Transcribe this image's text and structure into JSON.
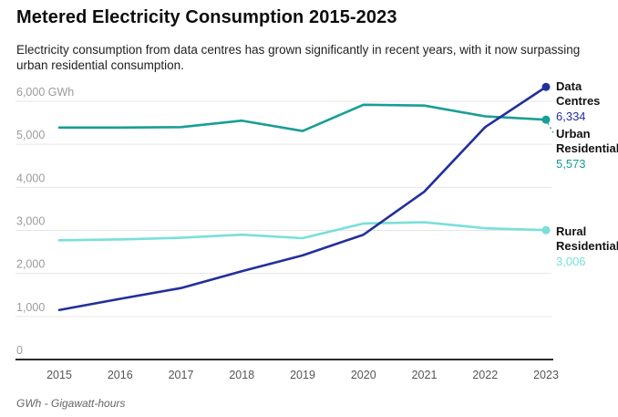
{
  "chart_data": {
    "type": "line",
    "title": "Metered Electricity Consumption 2015-2023",
    "subtitle": "Electricity consumption from data centres has grown significantly in recent years, with it now surpassing urban residential consumption.",
    "unit_note": "GWh - Gigawatt-hours",
    "x": [
      "2015",
      "2016",
      "2017",
      "2018",
      "2019",
      "2020",
      "2021",
      "2022",
      "2023"
    ],
    "xlabel": "",
    "ylabel": "GWh",
    "ylim": [
      0,
      6000
    ],
    "ytick_interval": 1000,
    "ytick_labels": [
      "0",
      "1,000",
      "2,000",
      "3,000",
      "4,000",
      "5,000",
      "6,000 GWh"
    ],
    "grid": true,
    "legend_position": "right-end-labels",
    "series": [
      {
        "name": "Data Centres",
        "color": "#23309b",
        "values": [
          1150,
          1410,
          1660,
          2050,
          2420,
          2900,
          3900,
          5400,
          6334
        ],
        "end_label": "6,334"
      },
      {
        "name": "Urban Residential",
        "color": "#189e95",
        "values": [
          5390,
          5390,
          5400,
          5550,
          5310,
          5920,
          5900,
          5650,
          5573
        ],
        "end_label": "5,573"
      },
      {
        "name": "Rural Residential",
        "color": "#79dfda",
        "values": [
          2770,
          2790,
          2830,
          2900,
          2820,
          3160,
          3190,
          3050,
          3006
        ],
        "end_label": "3,006"
      }
    ]
  },
  "colors": {
    "grid": "#e6e6e6",
    "axis": "#2b2b2b",
    "ytick_text": "#9b9b9b",
    "xtick_text": "#555555"
  }
}
